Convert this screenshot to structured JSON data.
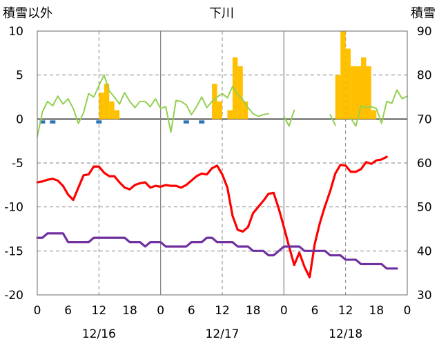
{
  "chart_data": {
    "type": "combo",
    "title": "下川",
    "left_axis_label": "積雪以外",
    "right_axis_label": "積雪",
    "left_ylim": [
      -20,
      10
    ],
    "left_ticks": [
      10,
      5,
      0,
      -5,
      -10,
      -15,
      -20
    ],
    "right_ylim": [
      30,
      90
    ],
    "right_ticks": [
      90,
      80,
      70,
      60,
      50,
      40,
      30
    ],
    "x_range_hours": [
      0,
      72
    ],
    "x_tick_hours": [
      0,
      6,
      12,
      18,
      24,
      30,
      36,
      42,
      48,
      54,
      60,
      66,
      72
    ],
    "x_tick_labels": [
      "0",
      "6",
      "12",
      "18",
      "0",
      "6",
      "12",
      "18",
      "0",
      "6",
      "12",
      "18",
      "0"
    ],
    "date_labels": [
      {
        "hour": 12,
        "label": "12/16"
      },
      {
        "hour": 36,
        "label": "12/17"
      },
      {
        "hour": 60,
        "label": "12/18"
      }
    ],
    "day_separator_hours": [
      24,
      48
    ],
    "noon_grid_hours": [
      12,
      36,
      60
    ],
    "series": [
      {
        "name": "snowfall_hourly",
        "kind": "bar",
        "axis": "left",
        "color": "#FFC000",
        "points": [
          [
            12,
            3
          ],
          [
            13,
            4
          ],
          [
            14,
            2
          ],
          [
            15,
            1
          ],
          [
            34,
            4
          ],
          [
            35,
            2
          ],
          [
            37,
            1
          ],
          [
            38,
            7
          ],
          [
            39,
            6
          ],
          [
            40,
            2
          ],
          [
            58,
            5
          ],
          [
            59,
            10
          ],
          [
            60,
            8
          ],
          [
            61,
            6
          ],
          [
            62,
            6
          ],
          [
            63,
            7
          ],
          [
            64,
            6
          ],
          [
            65,
            1
          ]
        ]
      },
      {
        "name": "precip_blue",
        "kind": "marker",
        "axis": "left",
        "color": "#2E75B6",
        "points": [
          [
            1,
            0
          ],
          [
            3,
            0
          ],
          [
            12,
            0
          ],
          [
            29,
            0
          ],
          [
            32,
            0
          ]
        ]
      },
      {
        "name": "wind_speed",
        "kind": "line",
        "axis": "left",
        "color": "#92D050",
        "points": [
          [
            0,
            -2
          ],
          [
            1,
            0.8
          ],
          [
            2,
            2
          ],
          [
            3,
            1.5
          ],
          [
            4,
            2.6
          ],
          [
            5,
            1.7
          ],
          [
            6,
            2.3
          ],
          [
            7,
            1.2
          ],
          [
            8,
            -0.5
          ],
          [
            9,
            0.7
          ],
          [
            10,
            2.9
          ],
          [
            11,
            2.5
          ],
          [
            12,
            3.8
          ],
          [
            13,
            5
          ],
          [
            14,
            3.2
          ],
          [
            15,
            2.5
          ],
          [
            16,
            1.7
          ],
          [
            17,
            3
          ],
          [
            18,
            2
          ],
          [
            19,
            1.3
          ],
          [
            20,
            2
          ],
          [
            21,
            2
          ],
          [
            22,
            1.4
          ],
          [
            23,
            2.3
          ],
          [
            24,
            1.2
          ],
          [
            25,
            1.4
          ],
          [
            26,
            -1.5
          ],
          [
            27,
            2.1
          ],
          [
            28,
            2
          ],
          [
            29,
            1.6
          ],
          [
            30,
            0.5
          ],
          [
            31,
            1.4
          ],
          [
            32,
            2.5
          ],
          [
            33,
            1.3
          ],
          [
            34,
            2
          ],
          [
            35,
            2.5
          ],
          [
            36,
            2.9
          ],
          [
            37,
            2.4
          ],
          [
            38,
            3.7
          ],
          [
            39,
            2.8
          ],
          [
            40,
            2.2
          ],
          [
            41,
            1.3
          ],
          [
            42,
            0.6
          ],
          [
            43,
            0.3
          ],
          [
            44,
            0.5
          ],
          [
            45,
            0.6
          ],
          [
            null,
            null
          ],
          [
            48,
            0.3
          ],
          [
            49,
            -0.8
          ],
          [
            50,
            1
          ],
          [
            null,
            null
          ],
          [
            57,
            0.5
          ],
          [
            58,
            -0.7
          ],
          [
            null,
            null
          ],
          [
            61,
            0.1
          ],
          [
            62,
            -0.8
          ],
          [
            63,
            1.5
          ],
          [
            64,
            1.3
          ],
          [
            65,
            1.4
          ],
          [
            66,
            1.2
          ],
          [
            67,
            -0.5
          ],
          [
            68,
            2
          ],
          [
            69,
            1.8
          ],
          [
            70,
            3.3
          ],
          [
            71,
            2.3
          ],
          [
            72,
            2.6
          ]
        ]
      },
      {
        "name": "temperature",
        "kind": "line",
        "axis": "left",
        "color": "#FF0000",
        "points": [
          [
            0,
            -7.2
          ],
          [
            1,
            -7.1
          ],
          [
            2,
            -6.9
          ],
          [
            3,
            -6.8
          ],
          [
            4,
            -7
          ],
          [
            5,
            -7.6
          ],
          [
            6,
            -8.6
          ],
          [
            7,
            -9.2
          ],
          [
            8,
            -7.8
          ],
          [
            9,
            -6.4
          ],
          [
            10,
            -6.3
          ],
          [
            11,
            -5.4
          ],
          [
            12,
            -5.4
          ],
          [
            13,
            -6.1
          ],
          [
            14,
            -6.5
          ],
          [
            15,
            -6.5
          ],
          [
            16,
            -7.2
          ],
          [
            17,
            -7.8
          ],
          [
            18,
            -8
          ],
          [
            19,
            -7.5
          ],
          [
            20,
            -7.3
          ],
          [
            21,
            -7.2
          ],
          [
            22,
            -7.8
          ],
          [
            23,
            -7.6
          ],
          [
            24,
            -7.7
          ],
          [
            25,
            -7.5
          ],
          [
            26,
            -7.6
          ],
          [
            27,
            -7.6
          ],
          [
            28,
            -7.8
          ],
          [
            29,
            -7.5
          ],
          [
            30,
            -7
          ],
          [
            31,
            -6.5
          ],
          [
            32,
            -6.2
          ],
          [
            33,
            -6.3
          ],
          [
            34,
            -5.6
          ],
          [
            35,
            -5.3
          ],
          [
            36,
            -6.3
          ],
          [
            37,
            -7.8
          ],
          [
            38,
            -11
          ],
          [
            39,
            -12.6
          ],
          [
            40,
            -12.8
          ],
          [
            41,
            -12.3
          ],
          [
            42,
            -10.7
          ],
          [
            43,
            -10
          ],
          [
            44,
            -9.3
          ],
          [
            45,
            -8.5
          ],
          [
            46,
            -8.4
          ],
          [
            47,
            -10.2
          ],
          [
            48,
            -12.3
          ],
          [
            49,
            -14.5
          ],
          [
            50,
            -16.6
          ],
          [
            51,
            -15.2
          ],
          [
            52,
            -16.8
          ],
          [
            53,
            -18
          ],
          [
            54,
            -14.2
          ],
          [
            55,
            -11.8
          ],
          [
            56,
            -9.9
          ],
          [
            57,
            -8.2
          ],
          [
            58,
            -6.2
          ],
          [
            59,
            -5.2
          ],
          [
            60,
            -5.3
          ],
          [
            61,
            -6
          ],
          [
            62,
            -6
          ],
          [
            63,
            -5.7
          ],
          [
            64,
            -4.9
          ],
          [
            65,
            -5.1
          ],
          [
            66,
            -4.7
          ],
          [
            67,
            -4.6
          ],
          [
            68,
            -4.3
          ]
        ]
      },
      {
        "name": "snow_depth",
        "kind": "line",
        "axis": "right",
        "color": "#7030A0",
        "points": [
          [
            0,
            43
          ],
          [
            1,
            43
          ],
          [
            2,
            44
          ],
          [
            3,
            44
          ],
          [
            4,
            44
          ],
          [
            5,
            44
          ],
          [
            6,
            42
          ],
          [
            7,
            42
          ],
          [
            8,
            42
          ],
          [
            9,
            42
          ],
          [
            10,
            42
          ],
          [
            11,
            43
          ],
          [
            12,
            43
          ],
          [
            13,
            43
          ],
          [
            14,
            43
          ],
          [
            15,
            43
          ],
          [
            16,
            43
          ],
          [
            17,
            43
          ],
          [
            18,
            42
          ],
          [
            19,
            42
          ],
          [
            20,
            42
          ],
          [
            21,
            41
          ],
          [
            22,
            42
          ],
          [
            23,
            42
          ],
          [
            24,
            42
          ],
          [
            25,
            41
          ],
          [
            26,
            41
          ],
          [
            27,
            41
          ],
          [
            28,
            41
          ],
          [
            29,
            41
          ],
          [
            30,
            42
          ],
          [
            31,
            42
          ],
          [
            32,
            42
          ],
          [
            33,
            43
          ],
          [
            34,
            43
          ],
          [
            35,
            42
          ],
          [
            36,
            42
          ],
          [
            37,
            42
          ],
          [
            38,
            42
          ],
          [
            39,
            41
          ],
          [
            40,
            41
          ],
          [
            41,
            41
          ],
          [
            42,
            40
          ],
          [
            43,
            40
          ],
          [
            44,
            40
          ],
          [
            45,
            39
          ],
          [
            46,
            39
          ],
          [
            47,
            40
          ],
          [
            48,
            41
          ],
          [
            49,
            41
          ],
          [
            50,
            41
          ],
          [
            51,
            41
          ],
          [
            52,
            40
          ],
          [
            53,
            40
          ],
          [
            54,
            40
          ],
          [
            55,
            40
          ],
          [
            56,
            40
          ],
          [
            57,
            39
          ],
          [
            58,
            39
          ],
          [
            59,
            39
          ],
          [
            60,
            38
          ],
          [
            61,
            38
          ],
          [
            62,
            38
          ],
          [
            63,
            37
          ],
          [
            64,
            37
          ],
          [
            65,
            37
          ],
          [
            66,
            37
          ],
          [
            67,
            37
          ],
          [
            68,
            36
          ],
          [
            69,
            36
          ],
          [
            70,
            36
          ]
        ]
      }
    ]
  }
}
